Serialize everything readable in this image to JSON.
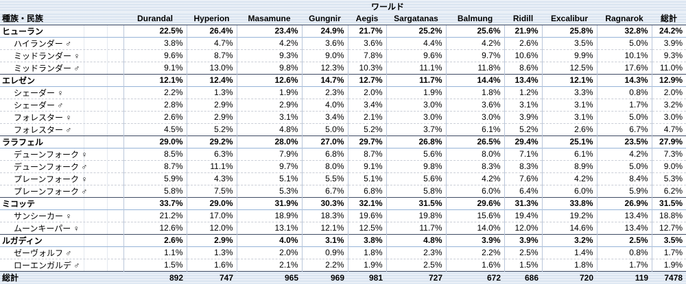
{
  "title": "ワールド",
  "row_header": "種族・民族",
  "total_label": "総計",
  "columns": [
    "Durandal",
    "Hyperion",
    "Masamune",
    "Gungnir",
    "Aegis",
    "Sargatanas",
    "Balmung",
    "Ridill",
    "Excalibur",
    "Ragnarok",
    "総計"
  ],
  "rows": [
    {
      "label": "ヒューラン",
      "type": "category",
      "values": [
        "22.5%",
        "26.4%",
        "23.4%",
        "24.9%",
        "21.7%",
        "25.2%",
        "25.6%",
        "21.9%",
        "25.8%",
        "32.8%",
        "24.2%"
      ]
    },
    {
      "label": "ハイランダー ♂",
      "type": "sub",
      "values": [
        "3.8%",
        "4.7%",
        "4.2%",
        "3.6%",
        "3.6%",
        "4.4%",
        "4.2%",
        "2.6%",
        "3.5%",
        "5.0%",
        "3.9%"
      ]
    },
    {
      "label": "ミッドランダー ♀",
      "type": "sub",
      "values": [
        "9.6%",
        "8.7%",
        "9.3%",
        "9.0%",
        "7.8%",
        "9.6%",
        "9.7%",
        "10.6%",
        "9.9%",
        "10.1%",
        "9.3%"
      ]
    },
    {
      "label": "ミッドランダー ♂",
      "type": "sub",
      "values": [
        "9.1%",
        "13.0%",
        "9.8%",
        "12.3%",
        "10.3%",
        "11.1%",
        "11.8%",
        "8.6%",
        "12.5%",
        "17.6%",
        "11.0%"
      ]
    },
    {
      "label": "エレゼン",
      "type": "category",
      "values": [
        "12.1%",
        "12.4%",
        "12.6%",
        "14.7%",
        "12.7%",
        "11.7%",
        "14.4%",
        "13.4%",
        "12.1%",
        "14.3%",
        "12.9%"
      ]
    },
    {
      "label": "シェーダー ♀",
      "type": "sub",
      "values": [
        "2.2%",
        "1.3%",
        "1.9%",
        "2.3%",
        "2.0%",
        "1.9%",
        "1.8%",
        "1.2%",
        "3.3%",
        "0.8%",
        "2.0%"
      ]
    },
    {
      "label": "シェーダー ♂",
      "type": "sub",
      "values": [
        "2.8%",
        "2.9%",
        "2.9%",
        "4.0%",
        "3.4%",
        "3.0%",
        "3.6%",
        "3.1%",
        "3.1%",
        "1.7%",
        "3.2%"
      ]
    },
    {
      "label": "フォレスター ♀",
      "type": "sub",
      "values": [
        "2.6%",
        "2.9%",
        "3.1%",
        "3.4%",
        "2.1%",
        "3.0%",
        "3.0%",
        "3.9%",
        "3.1%",
        "5.0%",
        "3.0%"
      ]
    },
    {
      "label": "フォレスター ♂",
      "type": "sub",
      "values": [
        "4.5%",
        "5.2%",
        "4.8%",
        "5.0%",
        "5.2%",
        "3.7%",
        "6.1%",
        "5.2%",
        "2.6%",
        "6.7%",
        "4.7%"
      ]
    },
    {
      "label": "ララフェル",
      "type": "category",
      "values": [
        "29.0%",
        "29.2%",
        "28.0%",
        "27.0%",
        "29.7%",
        "26.8%",
        "26.5%",
        "29.4%",
        "25.1%",
        "23.5%",
        "27.9%"
      ]
    },
    {
      "label": "デューンフォーク ♀",
      "type": "sub",
      "values": [
        "8.5%",
        "6.3%",
        "7.9%",
        "6.8%",
        "8.7%",
        "5.6%",
        "8.0%",
        "7.1%",
        "6.1%",
        "4.2%",
        "7.3%"
      ]
    },
    {
      "label": "デューンフォーク ♂",
      "type": "sub",
      "values": [
        "8.7%",
        "11.1%",
        "9.7%",
        "8.0%",
        "9.1%",
        "9.8%",
        "8.3%",
        "8.3%",
        "8.9%",
        "5.0%",
        "9.0%"
      ]
    },
    {
      "label": "プレーンフォーク ♀",
      "type": "sub",
      "values": [
        "5.9%",
        "4.3%",
        "5.1%",
        "5.5%",
        "5.1%",
        "5.6%",
        "4.2%",
        "7.6%",
        "4.2%",
        "8.4%",
        "5.3%"
      ]
    },
    {
      "label": "プレーンフォーク ♂",
      "type": "sub",
      "values": [
        "5.8%",
        "7.5%",
        "5.3%",
        "6.7%",
        "6.8%",
        "5.8%",
        "6.0%",
        "6.4%",
        "6.0%",
        "5.9%",
        "6.2%"
      ]
    },
    {
      "label": "ミコッテ",
      "type": "category",
      "values": [
        "33.7%",
        "29.0%",
        "31.9%",
        "30.3%",
        "32.1%",
        "31.5%",
        "29.6%",
        "31.3%",
        "33.8%",
        "26.9%",
        "31.5%"
      ]
    },
    {
      "label": "サンシーカー ♀",
      "type": "sub",
      "values": [
        "21.2%",
        "17.0%",
        "18.9%",
        "18.3%",
        "19.6%",
        "19.8%",
        "15.6%",
        "19.4%",
        "19.2%",
        "13.4%",
        "18.8%"
      ]
    },
    {
      "label": "ムーンキーパー ♀",
      "type": "sub",
      "values": [
        "12.6%",
        "12.0%",
        "13.1%",
        "12.1%",
        "12.5%",
        "11.7%",
        "14.0%",
        "12.0%",
        "14.6%",
        "13.4%",
        "12.7%"
      ]
    },
    {
      "label": "ルガディン",
      "type": "category",
      "values": [
        "2.6%",
        "2.9%",
        "4.0%",
        "3.1%",
        "3.8%",
        "4.8%",
        "3.9%",
        "3.9%",
        "3.2%",
        "2.5%",
        "3.5%"
      ]
    },
    {
      "label": "ゼーヴォルフ ♂",
      "type": "sub",
      "values": [
        "1.1%",
        "1.3%",
        "2.0%",
        "0.9%",
        "1.8%",
        "2.3%",
        "2.2%",
        "2.5%",
        "1.4%",
        "0.8%",
        "1.7%"
      ]
    },
    {
      "label": "ローエンガルデ ♂",
      "type": "sub",
      "values": [
        "1.5%",
        "1.6%",
        "2.1%",
        "2.2%",
        "1.9%",
        "2.5%",
        "1.6%",
        "1.5%",
        "1.8%",
        "1.7%",
        "1.9%"
      ]
    }
  ],
  "totals": [
    "892",
    "747",
    "965",
    "969",
    "981",
    "727",
    "672",
    "686",
    "720",
    "119",
    "7478"
  ],
  "colors": {
    "band": "#dbe5f1",
    "dark": "#3d4a63",
    "blue": "#95b3d7",
    "grid": "#b9c6da",
    "dash": "#c9cdd6",
    "faint": "#e4e9f0"
  }
}
